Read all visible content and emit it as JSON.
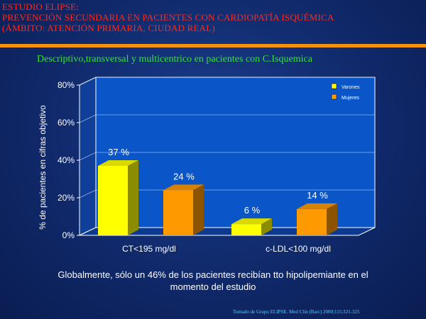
{
  "header": {
    "title_lines": [
      "ESTUDIO ELIPSE:",
      "PREVENCIÓN SECUNDARIA EN PACIENTES CON CARDIOPATÍA ISQUÉMICA",
      "(ÁMBITO: ATENCIÓN PRIMARIA, CIUDAD REAL)"
    ],
    "subtitle": "Descriptivo,transversal y multicentrico en pacientes con C.Isquemica"
  },
  "colors": {
    "title": "#ff2a1a",
    "rule": "#f2920e",
    "subtitle": "#36e03a",
    "varones": "#ffff00",
    "mujeres": "#ff9900",
    "citation": "#4fd0ff"
  },
  "chart_data": {
    "type": "bar",
    "categories": [
      "CT<195 mg/dl",
      "c-LDL<100 mg/dl"
    ],
    "series": [
      {
        "name": "Varones",
        "values": [
          37,
          6
        ],
        "labels": [
          "37 %",
          "6 %"
        ]
      },
      {
        "name": "Mujeres",
        "values": [
          24,
          14
        ],
        "labels": [
          "24 %",
          "14 %"
        ]
      }
    ],
    "ylabel": "% de pacientes en cifras objetivo",
    "yticks": [
      "0%",
      "20%",
      "40%",
      "60%",
      "80%"
    ],
    "ylim": [
      0,
      80
    ],
    "legend_position": "top-right",
    "three_d": true
  },
  "summary": "Globalmente, sólo un 46% de los pacientes recibían tto hipolipemiante en el momento del estudio",
  "citation": "Tomado de Grupo ELIPSE. Med Clin (Barc) 2000;115:321-325"
}
